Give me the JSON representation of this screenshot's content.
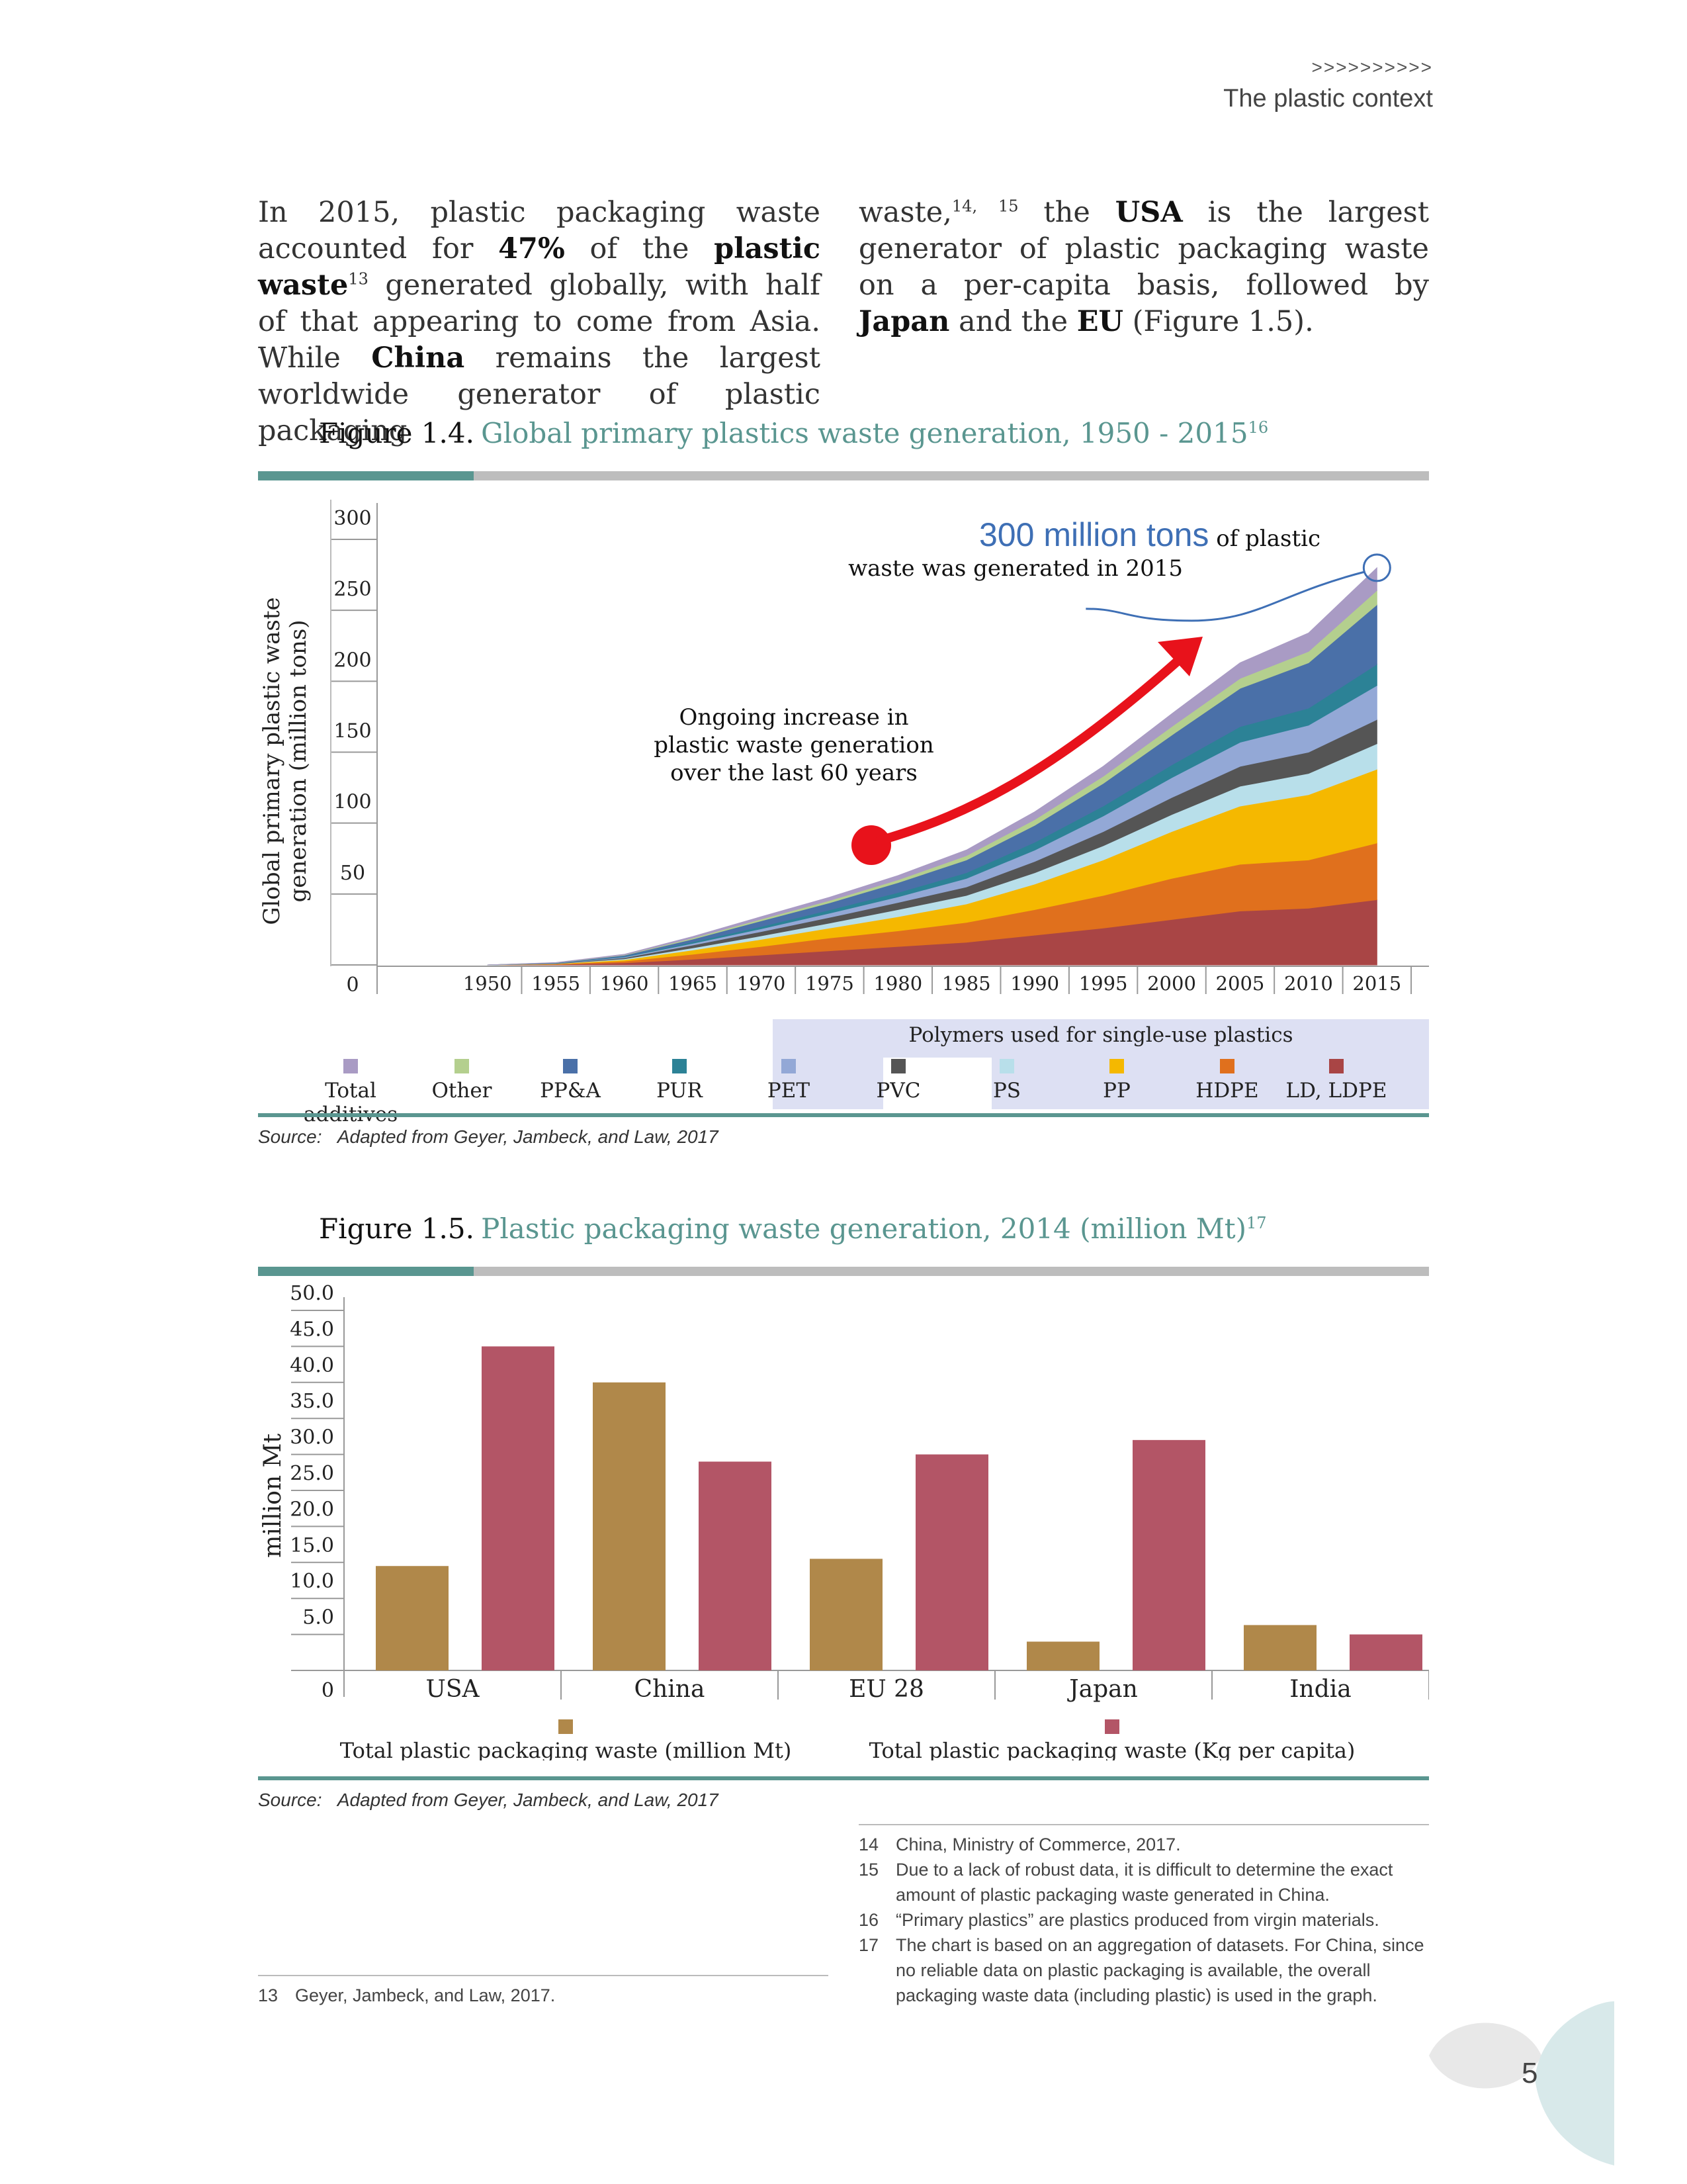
{
  "header": {
    "arrows": ">>>>>>>>>>",
    "section": "The plastic context"
  },
  "intro": {
    "col1": [
      {
        "t": "In 2015, plastic packaging waste accounted for "
      },
      {
        "t": "47%",
        "b": true
      },
      {
        "t": " of the "
      },
      {
        "t": "plastic waste",
        "b": true
      },
      {
        "t": "13",
        "sup": true
      },
      {
        "t": " generated globally, with half of that appearing to come from Asia. While "
      },
      {
        "t": "China",
        "b": true
      },
      {
        "t": " remains the largest worldwide generator of plastic packaging"
      }
    ],
    "col2": [
      {
        "t": "waste,"
      },
      {
        "t": "14, 15",
        "sup": true
      },
      {
        "t": " the "
      },
      {
        "t": "USA",
        "b": true
      },
      {
        "t": " is the largest generator of plastic packaging waste on a per-capita basis, followed by "
      },
      {
        "t": "Japan",
        "b": true
      },
      {
        "t": " and the "
      },
      {
        "t": "EU",
        "b": true
      },
      {
        "t": " (Figure 1.5)."
      }
    ]
  },
  "figure14": {
    "label": "Figure  1.4.",
    "title": "Global primary plastics waste generation, 1950 - 2015",
    "title_sup": "16",
    "ylabel_line1": "Global primary plastic waste",
    "ylabel_line2": "generation (million tons)",
    "callout_big": "300 million tons",
    "callout_small": "of plastic",
    "callout_line2": "waste was generated in 2015",
    "annotation": [
      "Ongoing increase in",
      "plastic waste generation",
      "over the last 60 years"
    ],
    "legend_group_title": "Polymers used for single-use plastics",
    "source_label": "Source:",
    "source_text": "Adapted from Geyer, Jambeck, and Law, 2017"
  },
  "figure15": {
    "label": "Figure  1.5.",
    "title": "Plastic packaging waste generation, 2014 (million Mt)",
    "title_sup": "17",
    "ylabel": "million Mt",
    "source_label": "Source:",
    "source_text": "Adapted from Geyer, Jambeck, and Law, 2017"
  },
  "chart_data": [
    {
      "type": "area",
      "stacked": true,
      "x": [
        1950,
        1955,
        1960,
        1965,
        1970,
        1975,
        1980,
        1985,
        1990,
        1995,
        2000,
        2005,
        2010,
        2015
      ],
      "xlim": [
        1946,
        2016
      ],
      "ylim": [
        0,
        320
      ],
      "yticks": [
        0,
        50,
        100,
        150,
        200,
        250,
        300
      ],
      "xticks": [
        1950,
        1955,
        1960,
        1965,
        1970,
        1975,
        1980,
        1985,
        1990,
        1995,
        2000,
        2005,
        2010,
        2015
      ],
      "series": [
        {
          "name": "LD, LDPE",
          "color": "#a94545",
          "values": [
            0,
            0.3,
            1.5,
            4,
            7,
            10,
            13,
            16,
            21,
            26,
            32,
            38,
            40,
            46
          ]
        },
        {
          "name": "HDPE",
          "color": "#e0701d",
          "values": [
            0,
            0.3,
            1.2,
            3.5,
            6,
            9,
            11,
            14,
            18,
            23,
            29,
            33,
            34,
            40
          ]
        },
        {
          "name": "PP",
          "color": "#f5b800",
          "values": [
            0,
            0.2,
            1,
            3,
            5,
            7,
            10,
            13,
            18,
            25,
            33,
            41,
            46,
            52
          ]
        },
        {
          "name": "PS",
          "color": "#b8dfea",
          "values": [
            0,
            0.1,
            0.6,
            1.5,
            2.5,
            3.5,
            5,
            6,
            8,
            10,
            12,
            14,
            15,
            18
          ]
        },
        {
          "name": "PVC",
          "color": "#555555",
          "values": [
            0,
            0.2,
            0.8,
            2,
            3,
            4,
            5,
            6,
            8,
            10,
            12,
            14,
            15,
            17
          ]
        },
        {
          "name": "PET",
          "color": "#93a8d6",
          "values": [
            0,
            0.1,
            0.5,
            1.2,
            2,
            3,
            4,
            6,
            8,
            11,
            14,
            17,
            19,
            24
          ]
        },
        {
          "name": "PUR",
          "color": "#2c8296",
          "values": [
            0,
            0.1,
            0.4,
            1,
            1.6,
            2.3,
            3,
            4,
            5.5,
            7,
            9,
            11,
            12,
            15
          ]
        },
        {
          "name": "PP&A",
          "color": "#4a70a8",
          "values": [
            0,
            0.2,
            0.8,
            2,
            4,
            5,
            7,
            9,
            12,
            16,
            21,
            27,
            32,
            42
          ]
        },
        {
          "name": "Other",
          "color": "#b4cf8e",
          "values": [
            0,
            0.1,
            0.3,
            0.8,
            1.2,
            1.6,
            2,
            3,
            4,
            5,
            6,
            7,
            8,
            10
          ]
        },
        {
          "name": "Total additives",
          "color": "#a99bc4",
          "values": [
            0,
            0.1,
            0.4,
            1,
            1.7,
            2.3,
            3,
            4,
            5.5,
            7,
            9,
            11,
            13,
            16
          ]
        }
      ],
      "legend": [
        "Total additives",
        "Other",
        "PP&A",
        "PUR",
        "PET",
        "PVC",
        "PS",
        "PP",
        "HDPE",
        "LD, LDPE"
      ]
    },
    {
      "type": "bar",
      "categories": [
        "USA",
        "China",
        "EU 28",
        "Japan",
        "India"
      ],
      "ylim": [
        0,
        50
      ],
      "yticks": [
        "0",
        "5.0",
        "10.0",
        "15.0",
        "20.0",
        "25.0",
        "30.0",
        "35.0",
        "40.0",
        "45.0",
        "50.0"
      ],
      "series": [
        {
          "name": "Total plastic packaging waste (million Mt)",
          "color": "#b0884a",
          "values": [
            14.5,
            40.0,
            15.5,
            4.0,
            6.3
          ]
        },
        {
          "name": "Total plastic packaging waste (Kg per capita)",
          "color": "#b35566",
          "values": [
            45.0,
            29.0,
            30.0,
            32.0,
            5.0
          ]
        }
      ]
    }
  ],
  "footnotes_right": [
    {
      "num": "14",
      "text": "China, Ministry of Commerce, 2017."
    },
    {
      "num": "15",
      "text": "Due to a lack of robust data, it is difficult to determine the exact amount of plastic packaging waste generated in China."
    },
    {
      "num": "16",
      "text": "“Primary plastics” are plastics produced from virgin materials."
    },
    {
      "num": "17",
      "text": "The chart is based on an aggregation of datasets. For China, since no reliable data on plastic packaging is available, the overall packaging waste data (including plastic) is used in the graph."
    }
  ],
  "footnote_left": {
    "num": "13",
    "text": "Geyer, Jambeck, and Law, 2017."
  },
  "page_number": "5",
  "colors": {
    "teal": "#5a9690",
    "legend_highlight": "#dde0f3",
    "callout_blue": "#3e6fb5",
    "arrow_red": "#e8121b"
  }
}
